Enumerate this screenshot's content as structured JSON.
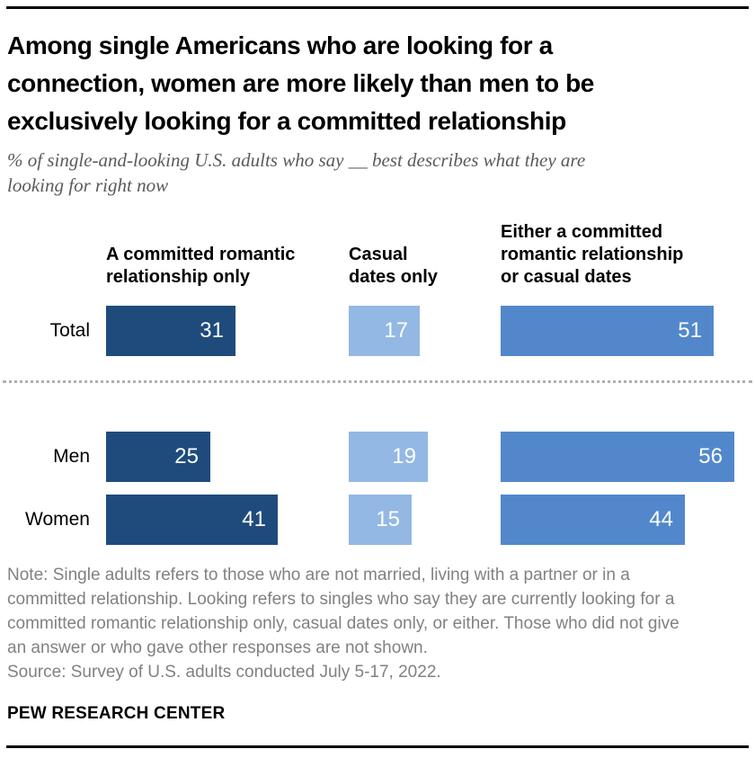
{
  "header": {
    "title": "Among single Americans who are looking for a\nconnection, women are more likely than men to be\nexclusively looking for a committed relationship",
    "subtitle": "% of single-and-looking U.S. adults who say __ best describes what they are\nlooking for right now"
  },
  "display": {
    "column_headers": [
      "A committed romantic\nrelationship only",
      "Casual\ndates only",
      "Either a committed\nromantic relationship\nor casual dates"
    ]
  },
  "chart_data": {
    "type": "bar",
    "orientation": "horizontal",
    "title": "Among single Americans who are looking for a connection, women are more likely than men to be exclusively looking for a committed relationship",
    "subtitle": "% of single-and-looking U.S. adults who say __ best describes what they are looking for right now",
    "unit": "%",
    "categories": [
      "Total",
      "Men",
      "Women"
    ],
    "series": [
      {
        "name": "A committed romantic relationship only",
        "values": [
          31,
          25,
          41
        ],
        "color": "#1F4B7C"
      },
      {
        "name": "Casual dates only",
        "values": [
          17,
          19,
          15
        ],
        "color": "#93B8E3"
      },
      {
        "name": "Either a committed romantic relationship or casual dates",
        "values": [
          51,
          56,
          44
        ],
        "color": "#5288CB"
      }
    ],
    "xlim": [
      0,
      56
    ],
    "grid": false,
    "legend_position": "column-headers-above-bars",
    "value_labels": "inside-right-white",
    "group_divider": "dotted line between Total and Men/Women"
  },
  "footer": {
    "note": "Note: Single adults refers to those who are not married, living with a partner or in a\ncommitted relationship. Looking refers to singles who say they are currently looking for a\ncommitted romantic relationship only, casual dates only, or either. Those who did not give\nan answer or who gave other responses are not shown.",
    "source": "Source: Survey of U.S. adults conducted July 5-17, 2022.",
    "brand": "PEW RESEARCH CENTER"
  }
}
